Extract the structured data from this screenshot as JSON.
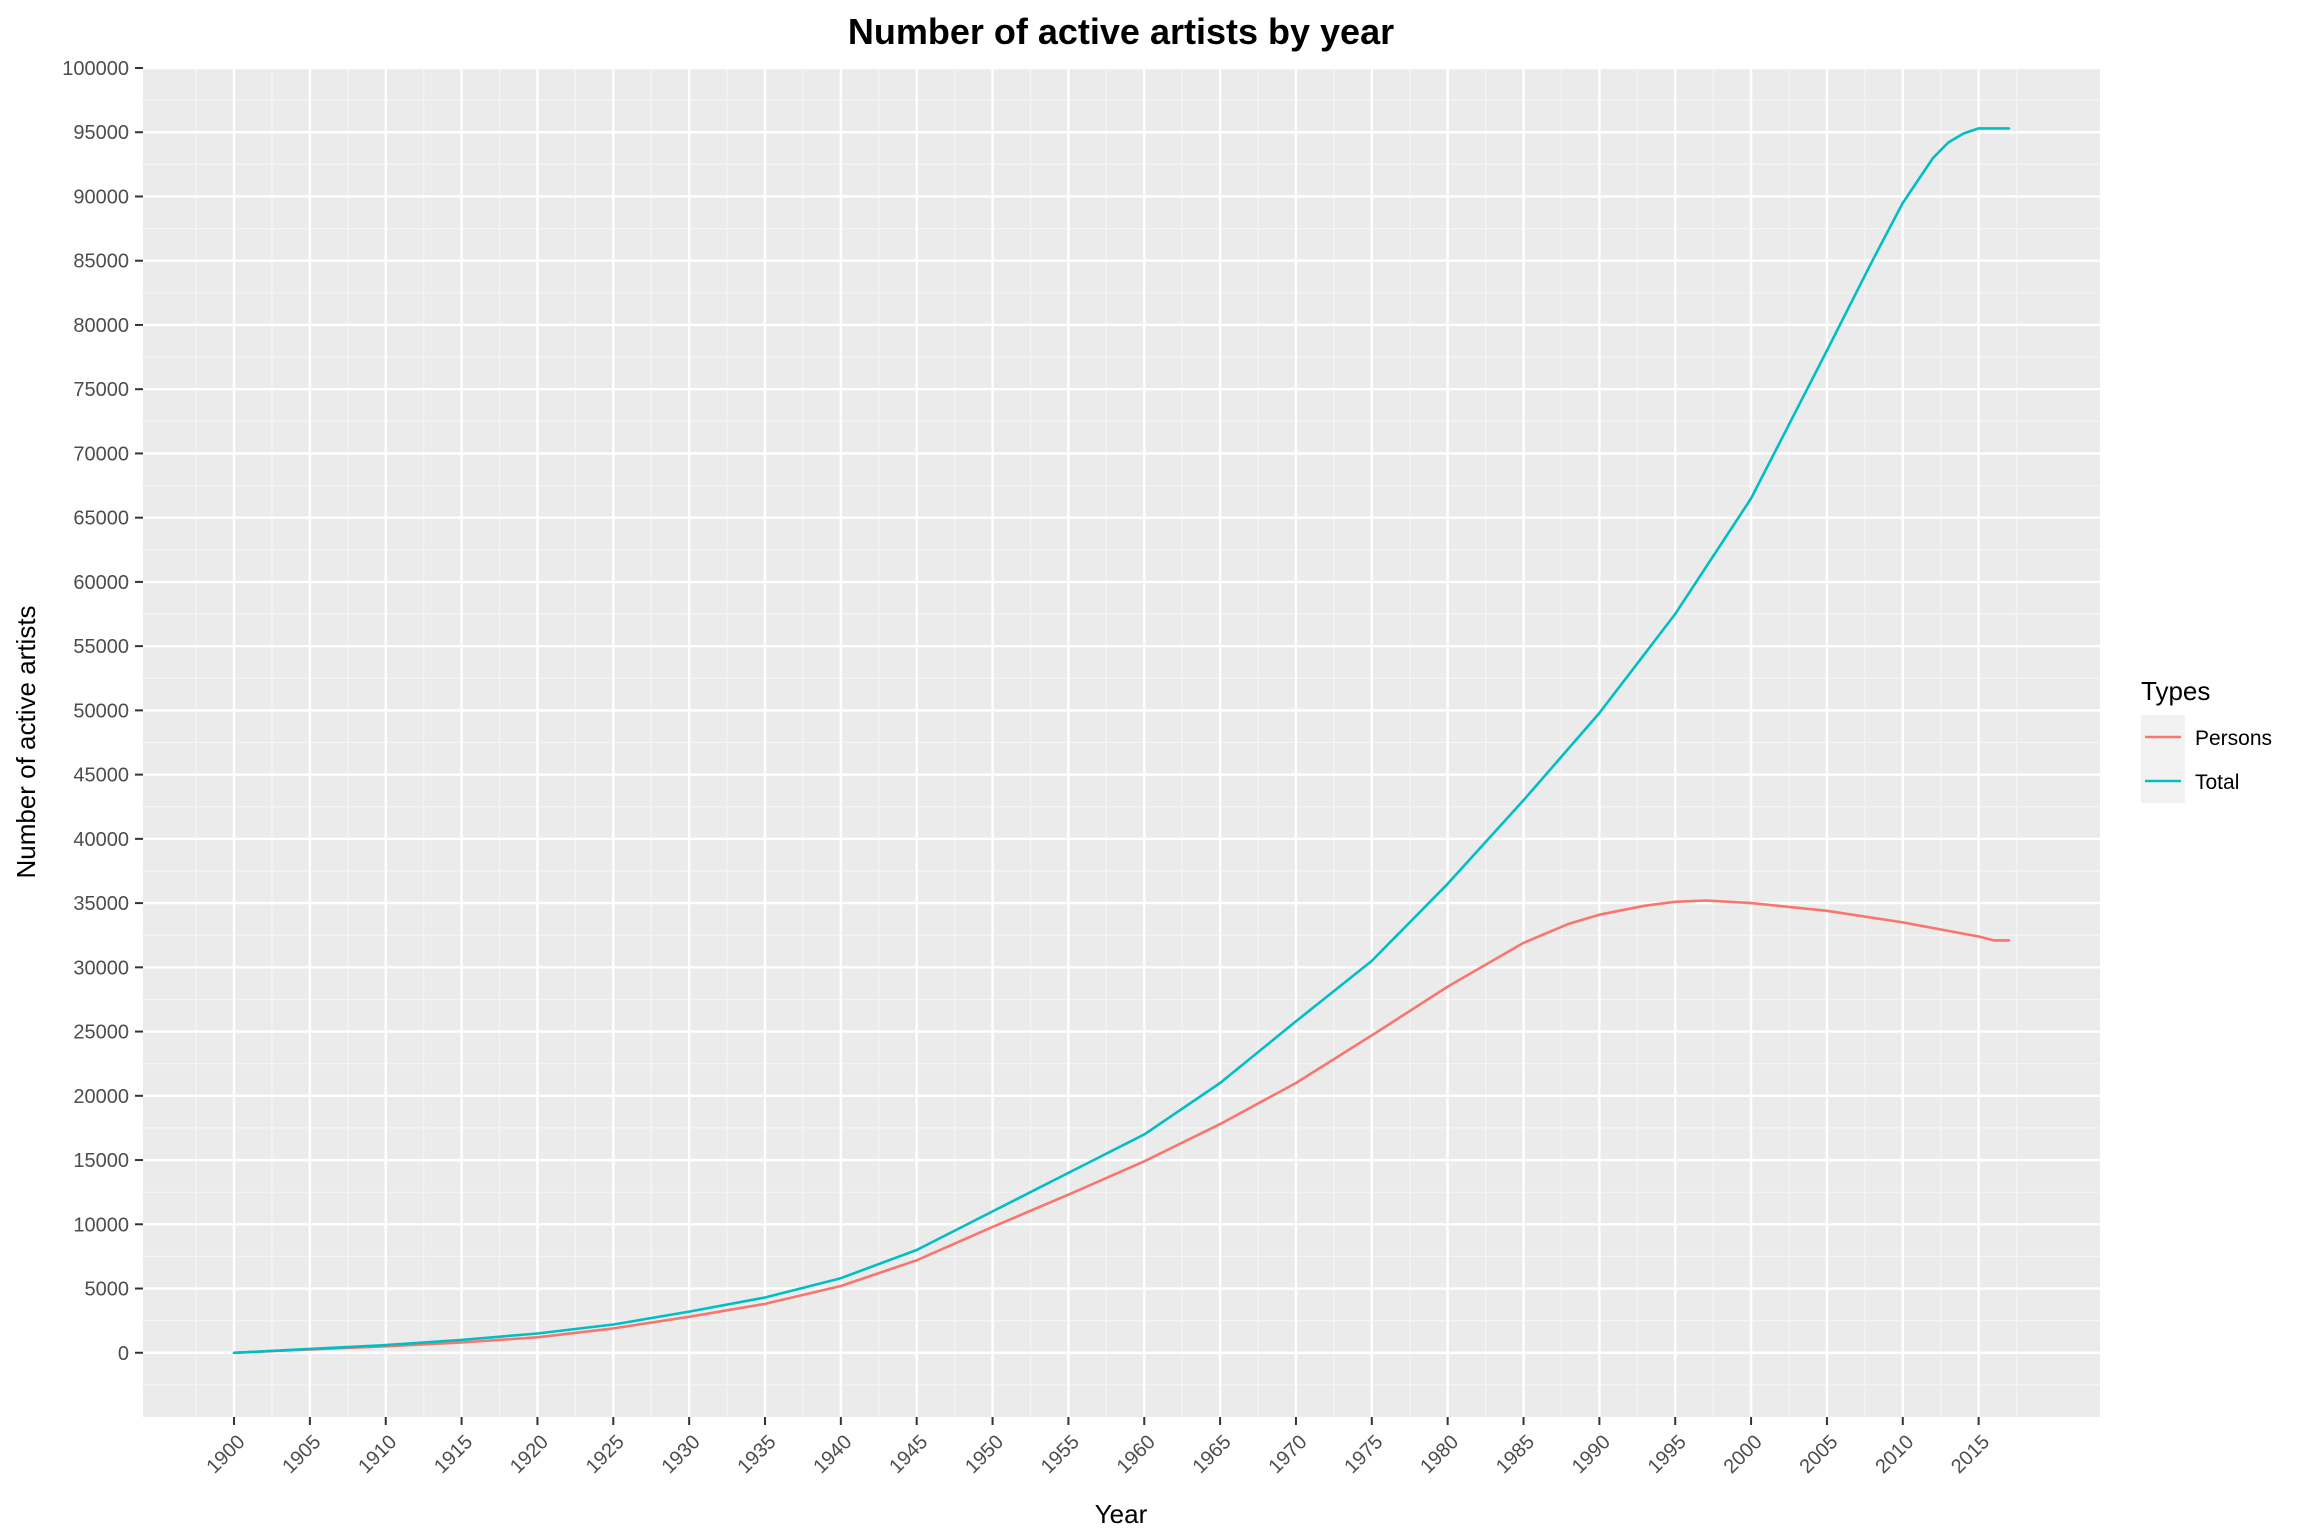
{
  "chart_data": {
    "type": "line",
    "title": "Number of active artists by year",
    "xlabel": "Year",
    "ylabel": "Number of active artists",
    "xlim": [
      1894,
      2023
    ],
    "ylim": [
      -5000,
      100000
    ],
    "x_ticks": [
      1900,
      1905,
      1910,
      1915,
      1920,
      1925,
      1930,
      1935,
      1940,
      1945,
      1950,
      1955,
      1960,
      1965,
      1970,
      1975,
      1980,
      1985,
      1990,
      1995,
      2000,
      2005,
      2010,
      2015
    ],
    "y_ticks": [
      0,
      5000,
      10000,
      15000,
      20000,
      25000,
      30000,
      35000,
      40000,
      45000,
      50000,
      55000,
      60000,
      65000,
      70000,
      75000,
      80000,
      85000,
      90000,
      95000,
      100000
    ],
    "grid": true,
    "legend": {
      "title": "Types",
      "position": "right"
    },
    "series": [
      {
        "name": "Persons",
        "color": "#f8766d",
        "x": [
          1900,
          1905,
          1910,
          1915,
          1920,
          1925,
          1930,
          1935,
          1940,
          1945,
          1950,
          1955,
          1960,
          1965,
          1970,
          1975,
          1980,
          1985,
          1988,
          1990,
          1993,
          1995,
          1997,
          2000,
          2005,
          2010,
          2015,
          2016,
          2017
        ],
        "y": [
          0,
          250,
          500,
          800,
          1200,
          1900,
          2800,
          3800,
          5200,
          7200,
          9800,
          12300,
          14900,
          17800,
          21000,
          24700,
          28500,
          31900,
          33400,
          34100,
          34800,
          35100,
          35200,
          35000,
          34400,
          33500,
          32400,
          32100,
          32100
        ]
      },
      {
        "name": "Total",
        "color": "#00bfc4",
        "x": [
          1900,
          1905,
          1910,
          1915,
          1920,
          1925,
          1930,
          1935,
          1940,
          1945,
          1950,
          1955,
          1960,
          1965,
          1970,
          1975,
          1980,
          1985,
          1990,
          1995,
          2000,
          2005,
          2008,
          2010,
          2012,
          2013,
          2014,
          2015,
          2017
        ],
        "y": [
          0,
          300,
          600,
          1000,
          1500,
          2200,
          3200,
          4300,
          5800,
          8000,
          11000,
          14000,
          17000,
          21000,
          25800,
          30500,
          36500,
          43000,
          49800,
          57500,
          66500,
          78000,
          85000,
          89500,
          93000,
          94200,
          94900,
          95300,
          95300
        ]
      }
    ]
  }
}
